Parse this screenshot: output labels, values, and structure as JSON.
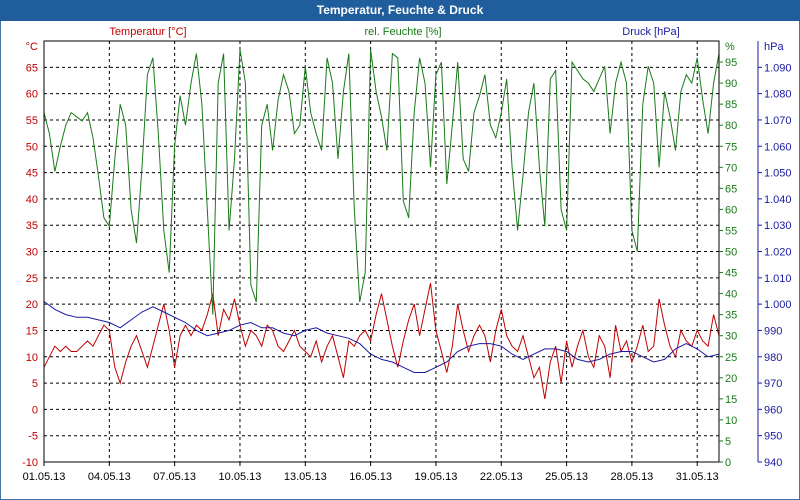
{
  "window": {
    "title": "Temperatur, Feuchte & Druck"
  },
  "chart_data": {
    "type": "line",
    "title": "Temperatur, Feuchte & Druck",
    "x_tick_labels": [
      "01.05.13",
      "04.05.13",
      "07.05.13",
      "10.05.13",
      "13.05.13",
      "16.05.13",
      "19.05.13",
      "22.05.13",
      "25.05.13",
      "28.05.13",
      "31.05.13"
    ],
    "x_range_days": [
      1,
      32
    ],
    "grid": true,
    "colors": {
      "temperature": "#c00000",
      "humidity": "#1a7a1a",
      "pressure": "#1a1aa0",
      "grid": "#000000",
      "title_bar": "#1f5d9c"
    },
    "axes": {
      "left": {
        "unit": "°C",
        "ylim": [
          -10,
          70
        ],
        "ticks": [
          "-10",
          "-5",
          "0",
          "5",
          "10",
          "15",
          "20",
          "25",
          "30",
          "35",
          "40",
          "45",
          "50",
          "55",
          "60",
          "65"
        ]
      },
      "middle": {
        "unit": "%",
        "ylim": [
          0,
          100
        ],
        "ticks": [
          "0",
          "5",
          "10",
          "15",
          "20",
          "25",
          "30",
          "35",
          "40",
          "45",
          "50",
          "55",
          "60",
          "65",
          "70",
          "75",
          "80",
          "85",
          "90",
          "95"
        ]
      },
      "right": {
        "unit": "hPa",
        "ylim": [
          940,
          1100
        ],
        "ticks": [
          "940",
          "950",
          "960",
          "970",
          "980",
          "990",
          "1.000",
          "1.010",
          "1.020",
          "1.030",
          "1.040",
          "1.050",
          "1.060",
          "1.070",
          "1.080",
          "1.090"
        ]
      }
    },
    "series": [
      {
        "name": "Temperatur [°C]",
        "axis": "left",
        "color": "#c00000",
        "x": [
          1,
          1.25,
          1.5,
          1.75,
          2,
          2.25,
          2.5,
          2.75,
          3,
          3.25,
          3.5,
          3.75,
          4,
          4.25,
          4.5,
          4.75,
          5,
          5.25,
          5.5,
          5.75,
          6,
          6.25,
          6.5,
          6.75,
          7,
          7.25,
          7.5,
          7.75,
          8,
          8.25,
          8.5,
          8.75,
          9,
          9.25,
          9.5,
          9.75,
          10,
          10.25,
          10.5,
          10.75,
          11,
          11.25,
          11.5,
          11.75,
          12,
          12.25,
          12.5,
          12.75,
          13,
          13.25,
          13.5,
          13.75,
          14,
          14.25,
          14.5,
          14.75,
          15,
          15.25,
          15.5,
          15.75,
          16,
          16.25,
          16.5,
          16.75,
          17,
          17.25,
          17.5,
          17.75,
          18,
          18.25,
          18.5,
          18.75,
          19,
          19.25,
          19.5,
          19.75,
          20,
          20.25,
          20.5,
          20.75,
          21,
          21.25,
          21.5,
          21.75,
          22,
          22.25,
          22.5,
          22.75,
          23,
          23.25,
          23.5,
          23.75,
          24,
          24.25,
          24.5,
          24.75,
          25,
          25.25,
          25.5,
          25.75,
          26,
          26.25,
          26.5,
          26.75,
          27,
          27.25,
          27.5,
          27.75,
          28,
          28.25,
          28.5,
          28.75,
          29,
          29.25,
          29.5,
          29.75,
          30,
          30.25,
          30.5,
          30.75,
          31,
          31.25,
          31.5,
          31.75,
          32
        ],
        "values": [
          8,
          10,
          12,
          11,
          12,
          11,
          11,
          12,
          13,
          12,
          14,
          16,
          15,
          8,
          5,
          9,
          12,
          14,
          11,
          8,
          12,
          16,
          20,
          15,
          8,
          14,
          16,
          14,
          16,
          15,
          18,
          22,
          14,
          19,
          17,
          21,
          16,
          12,
          15,
          14,
          12,
          16,
          15,
          12,
          11,
          13,
          15,
          12,
          11,
          10,
          13,
          9,
          12,
          14,
          10,
          6,
          13,
          12,
          14,
          15,
          13,
          18,
          22,
          17,
          12,
          8,
          13,
          17,
          20,
          14,
          19,
          24,
          15,
          11,
          7,
          12,
          20,
          15,
          11,
          14,
          16,
          14,
          9,
          15,
          19,
          14,
          12,
          11,
          14,
          10,
          6,
          8,
          2,
          9,
          12,
          5,
          13,
          8,
          12,
          15,
          10,
          8,
          14,
          12,
          6,
          16,
          11,
          13,
          9,
          12,
          16,
          11,
          12,
          21,
          16,
          12,
          10,
          15,
          13,
          12,
          15,
          13,
          12,
          18,
          14
        ]
      },
      {
        "name": "rel. Feuchte [%]",
        "axis": "middle",
        "color": "#1a7a1a",
        "x": [
          1,
          1.25,
          1.5,
          1.75,
          2,
          2.25,
          2.5,
          2.75,
          3,
          3.25,
          3.5,
          3.75,
          4,
          4.25,
          4.5,
          4.75,
          5,
          5.25,
          5.5,
          5.75,
          6,
          6.25,
          6.5,
          6.75,
          7,
          7.25,
          7.5,
          7.75,
          8,
          8.25,
          8.5,
          8.75,
          9,
          9.25,
          9.5,
          9.75,
          10,
          10.25,
          10.5,
          10.75,
          11,
          11.25,
          11.5,
          11.75,
          12,
          12.25,
          12.5,
          12.75,
          13,
          13.25,
          13.5,
          13.75,
          14,
          14.25,
          14.5,
          14.75,
          15,
          15.25,
          15.5,
          15.75,
          16,
          16.25,
          16.5,
          16.75,
          17,
          17.25,
          17.5,
          17.75,
          18,
          18.25,
          18.5,
          18.75,
          19,
          19.25,
          19.5,
          19.75,
          20,
          20.25,
          20.5,
          20.75,
          21,
          21.25,
          21.5,
          21.75,
          22,
          22.25,
          22.5,
          22.75,
          23,
          23.25,
          23.5,
          23.75,
          24,
          24.25,
          24.5,
          24.75,
          25,
          25.25,
          25.5,
          25.75,
          26,
          26.25,
          26.5,
          26.75,
          27,
          27.25,
          27.5,
          27.75,
          28,
          28.25,
          28.5,
          28.75,
          29,
          29.25,
          29.5,
          29.75,
          30,
          30.25,
          30.5,
          30.75,
          31,
          31.25,
          31.5,
          31.75,
          32
        ],
        "values": [
          83,
          78,
          69,
          75,
          80,
          83,
          82,
          81,
          83,
          77,
          68,
          58,
          56,
          72,
          85,
          80,
          60,
          52,
          70,
          92,
          96,
          78,
          55,
          45,
          75,
          87,
          80,
          90,
          97,
          85,
          60,
          35,
          90,
          97,
          55,
          72,
          98,
          90,
          42,
          38,
          80,
          85,
          74,
          86,
          92,
          88,
          78,
          80,
          94,
          83,
          78,
          74,
          96,
          90,
          72,
          88,
          97,
          60,
          38,
          45,
          98,
          88,
          82,
          74,
          97,
          96,
          62,
          58,
          83,
          96,
          90,
          70,
          92,
          95,
          66,
          80,
          95,
          72,
          69,
          83,
          87,
          92,
          80,
          77,
          83,
          91,
          70,
          55,
          68,
          83,
          90,
          70,
          56,
          91,
          93,
          60,
          55,
          95,
          93,
          91,
          90,
          88,
          91,
          94,
          78,
          90,
          95,
          90,
          55,
          50,
          85,
          94,
          90,
          70,
          88,
          82,
          74,
          88,
          92,
          90,
          96,
          86,
          78,
          90,
          97
        ]
      },
      {
        "name": "Druck [hPa]",
        "axis": "right",
        "color": "#1a1aa0",
        "x": [
          1,
          1.5,
          2,
          2.5,
          3,
          3.5,
          4,
          4.5,
          5,
          5.5,
          6,
          6.5,
          7,
          7.5,
          8,
          8.5,
          9,
          9.5,
          10,
          10.5,
          11,
          11.5,
          12,
          12.5,
          13,
          13.5,
          14,
          14.5,
          15,
          15.5,
          16,
          16.5,
          17,
          17.5,
          18,
          18.5,
          19,
          19.5,
          20,
          20.5,
          21,
          21.5,
          22,
          22.5,
          23,
          23.5,
          24,
          24.5,
          25,
          25.5,
          26,
          26.5,
          27,
          27.5,
          28,
          28.5,
          29,
          29.5,
          30,
          30.5,
          31,
          31.5,
          32
        ],
        "values": [
          1001,
          998,
          996,
          995,
          995,
          994,
          993,
          991,
          994,
          997,
          999,
          997,
          995,
          993,
          990,
          988,
          989,
          990,
          992,
          993,
          991,
          991,
          989,
          988,
          990,
          991,
          989,
          988,
          987,
          985,
          981,
          979,
          978,
          976,
          974,
          974,
          976,
          978,
          982,
          984,
          985,
          985,
          984,
          981,
          979,
          981,
          983,
          983,
          982,
          979,
          978,
          979,
          981,
          982,
          982,
          980,
          978,
          979,
          983,
          985,
          983,
          980,
          981
        ]
      }
    ]
  },
  "legend": {
    "temperature": "Temperatur [°C]",
    "humidity": "rel. Feuchte [%]",
    "pressure": "Druck [hPa]"
  }
}
